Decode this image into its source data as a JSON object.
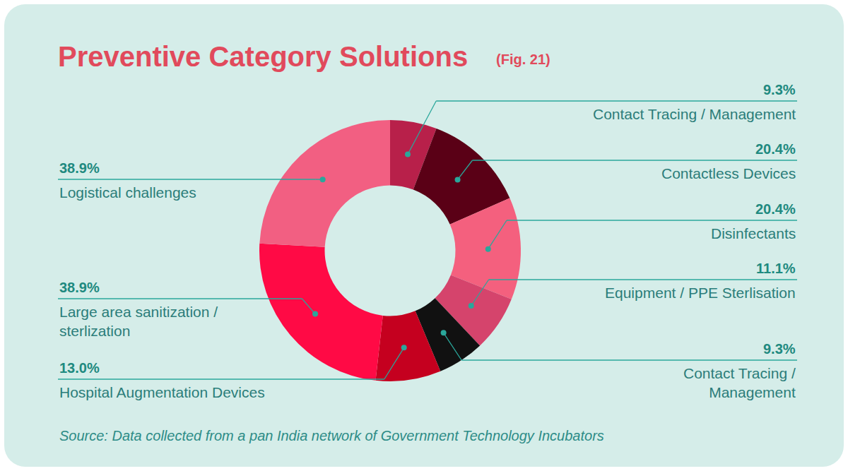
{
  "chart_data": {
    "type": "pie",
    "title": "Preventive Category Solutions",
    "subtitle": "(Fig. 21)",
    "annotations": [
      "Source: Data collected from a pan India network of Government Technology Incubators"
    ],
    "categories": [
      "Contact Tracing / Management",
      "Contactless Devices",
      "Disinfectants",
      "Equipment / PPE Sterlisation",
      "Contact Tracing / Management",
      "Hospital Augmentation Devices",
      "Large area sanitization / sterlization",
      "Logistical challenges"
    ],
    "values": [
      9.3,
      20.4,
      20.4,
      11.1,
      9.3,
      13.0,
      38.9,
      38.9
    ],
    "value_labels": [
      "9.3%",
      "20.4%",
      "20.4%",
      "11.1%",
      "9.3%",
      "13.0%",
      "38.9%",
      "38.9%"
    ],
    "colors": [
      "#b8204a",
      "#5a0016",
      "#f4607e",
      "#d5446c",
      "#111111",
      "#c5001f",
      "#ff0a45",
      "#f25f82"
    ],
    "data_labels": true
  }
}
